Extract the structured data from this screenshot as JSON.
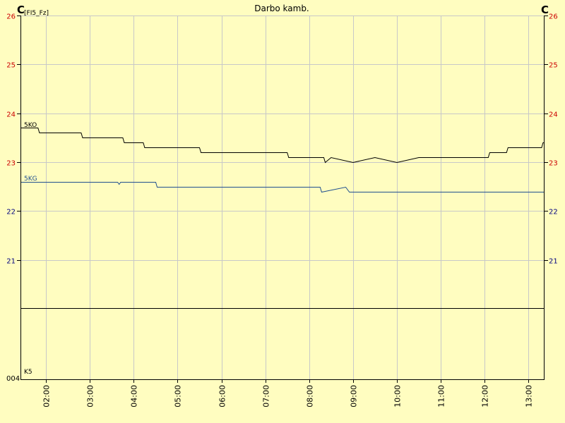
{
  "chart_data": {
    "type": "line",
    "title": "Darbo kamb.",
    "y_unit_left": "C",
    "y_unit_left_sub": "[FI5_Fz]",
    "y_unit_right": "C",
    "ylim": [
      20,
      26
    ],
    "y_ticks": [
      21,
      22,
      23,
      24,
      25,
      26
    ],
    "y_tick_colors": {
      "26": "#cc0000",
      "25": "#cc0000",
      "24": "#cc0000",
      "23": "#cc0000",
      "22": "#000080",
      "21": "#000080"
    },
    "x_ticks": [
      "02:00",
      "03:00",
      "04:00",
      "05:00",
      "06:00",
      "07:00",
      "08:00",
      "09:00",
      "10:00",
      "11:00",
      "12:00",
      "13:00"
    ],
    "xlim": [
      "01:25",
      "13:22"
    ],
    "grid": true,
    "series": [
      {
        "name": "5KO",
        "color": "#000000",
        "points": [
          [
            "01:25",
            23.7
          ],
          [
            "01:49",
            23.7
          ],
          [
            "01:51",
            23.6
          ],
          [
            "02:08",
            23.6
          ],
          [
            "02:48",
            23.6
          ],
          [
            "02:50",
            23.5
          ],
          [
            "02:58",
            23.5
          ],
          [
            "03:45",
            23.5
          ],
          [
            "03:47",
            23.4
          ],
          [
            "04:13",
            23.4
          ],
          [
            "04:15",
            23.3
          ],
          [
            "04:30",
            23.3
          ],
          [
            "05:30",
            23.3
          ],
          [
            "05:32",
            23.2
          ],
          [
            "06:30",
            23.2
          ],
          [
            "07:05",
            23.2
          ],
          [
            "07:30",
            23.2
          ],
          [
            "07:32",
            23.1
          ],
          [
            "08:20",
            23.1
          ],
          [
            "08:22",
            23.0
          ],
          [
            "08:30",
            23.1
          ],
          [
            "09:00",
            23.0
          ],
          [
            "09:30",
            23.1
          ],
          [
            "10:00",
            23.0
          ],
          [
            "10:30",
            23.1
          ],
          [
            "10:48",
            23.1
          ],
          [
            "12:05",
            23.1
          ],
          [
            "12:07",
            23.2
          ],
          [
            "12:30",
            23.2
          ],
          [
            "12:32",
            23.3
          ],
          [
            "13:18",
            23.3
          ],
          [
            "13:20",
            23.4
          ],
          [
            "13:22",
            23.4
          ]
        ]
      },
      {
        "name": "5KG",
        "color": "#1f4f8f",
        "points": [
          [
            "01:25",
            22.6
          ],
          [
            "03:38",
            22.6
          ],
          [
            "03:40",
            22.55
          ],
          [
            "03:42",
            22.6
          ],
          [
            "04:30",
            22.6
          ],
          [
            "04:32",
            22.5
          ],
          [
            "08:15",
            22.5
          ],
          [
            "08:17",
            22.4
          ],
          [
            "08:50",
            22.5
          ],
          [
            "08:55",
            22.4
          ],
          [
            "13:22",
            22.4
          ]
        ]
      }
    ],
    "lower_panel": {
      "label": "K5",
      "axis_label": "004"
    }
  }
}
